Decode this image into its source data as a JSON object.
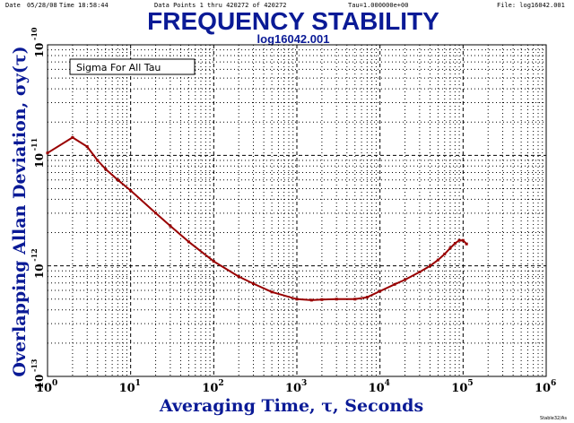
{
  "header": {
    "date_label": "Date",
    "date": "05/28/08",
    "time_label": "Time",
    "time": "18:58:44",
    "data_points": "Data Points 1 thru 420272 of 420272",
    "tau": "Tau=1.000000e+00",
    "file": "File: log16042.001"
  },
  "title": "FREQUENCY STABILITY",
  "subtitle": "log16042.001",
  "legend": "Sigma For All Tau",
  "footer": "Stable32/As",
  "colors": {
    "title": "#0a1a96",
    "series": "#990000",
    "grid": "#000000"
  },
  "chart_data": {
    "type": "line",
    "title": "FREQUENCY STABILITY",
    "subtitle": "log16042.001",
    "xlabel": "Averaging Time, τ, Seconds",
    "ylabel": "Overlapping Allan Deviation, σy(τ)",
    "x_scale": "log",
    "y_scale": "log",
    "xlim": [
      1,
      1000000
    ],
    "ylim": [
      1e-13,
      1e-10
    ],
    "x_ticks": [
      {
        "base": "10",
        "exp": "0"
      },
      {
        "base": "10",
        "exp": "1"
      },
      {
        "base": "10",
        "exp": "2"
      },
      {
        "base": "10",
        "exp": "3"
      },
      {
        "base": "10",
        "exp": "4"
      },
      {
        "base": "10",
        "exp": "5"
      },
      {
        "base": "10",
        "exp": "6"
      }
    ],
    "y_ticks": [
      {
        "base": "10",
        "exp": "-10"
      },
      {
        "base": "10",
        "exp": "-11"
      },
      {
        "base": "10",
        "exp": "-12"
      },
      {
        "base": "10",
        "exp": "-13"
      }
    ],
    "grid": true,
    "legend_position": "top-left",
    "series": [
      {
        "name": "Sigma For All Tau",
        "x": [
          1,
          2,
          3,
          4,
          5,
          7,
          10,
          20,
          30,
          50,
          100,
          200,
          300,
          500,
          1000,
          1500,
          2000,
          3000,
          5000,
          7000,
          10000,
          15000,
          20000,
          30000,
          40000,
          50000,
          60000,
          70000,
          80000,
          90000,
          100000,
          110000
        ],
        "y": [
          1.05e-11,
          1.45e-11,
          1.2e-11,
          9e-12,
          7.5e-12,
          6e-12,
          4.8e-12,
          3e-12,
          2.3e-12,
          1.65e-12,
          1.1e-12,
          8e-13,
          6.9e-13,
          5.8e-13,
          5e-13,
          4.9e-13,
          4.95e-13,
          5e-13,
          5e-13,
          5.2e-13,
          5.9e-13,
          6.8e-13,
          7.5e-13,
          8.8e-13,
          1e-12,
          1.13e-12,
          1.28e-12,
          1.45e-12,
          1.6e-12,
          1.7e-12,
          1.7e-12,
          1.58e-12
        ]
      }
    ]
  }
}
